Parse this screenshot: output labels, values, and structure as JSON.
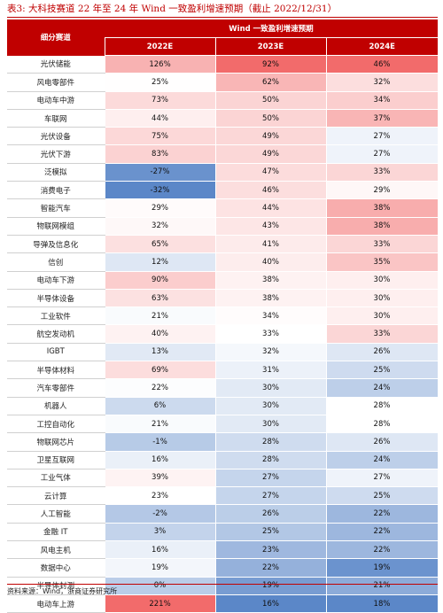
{
  "title": "表3:   大科技赛道 22 年至 24 年 Wind 一致盈利增速预期（截止 2022/12/31）",
  "header": {
    "category": "细分赛道",
    "group": "Wind 一致盈利增速预期",
    "years": [
      "2022E",
      "2023E",
      "2024E"
    ]
  },
  "rows": [
    {
      "name": "光伏储能",
      "v": [
        "126%",
        "92%",
        "46%"
      ]
    },
    {
      "name": "风电零部件",
      "v": [
        "25%",
        "62%",
        "32%"
      ]
    },
    {
      "name": "电动车中游",
      "v": [
        "73%",
        "50%",
        "34%"
      ]
    },
    {
      "name": "车联网",
      "v": [
        "44%",
        "50%",
        "37%"
      ]
    },
    {
      "name": "光伏设备",
      "v": [
        "75%",
        "49%",
        "27%"
      ]
    },
    {
      "name": "光伏下游",
      "v": [
        "83%",
        "49%",
        "27%"
      ]
    },
    {
      "name": "泛模拟",
      "v": [
        "-27%",
        "47%",
        "33%"
      ]
    },
    {
      "name": "消费电子",
      "v": [
        "-32%",
        "46%",
        "29%"
      ]
    },
    {
      "name": "智能汽车",
      "v": [
        "29%",
        "44%",
        "38%"
      ]
    },
    {
      "name": "物联网模组",
      "v": [
        "32%",
        "43%",
        "38%"
      ]
    },
    {
      "name": "导弹及信息化",
      "v": [
        "65%",
        "41%",
        "33%"
      ]
    },
    {
      "name": "信创",
      "v": [
        "12%",
        "40%",
        "35%"
      ]
    },
    {
      "name": "电动车下游",
      "v": [
        "90%",
        "38%",
        "30%"
      ]
    },
    {
      "name": "半导体设备",
      "v": [
        "63%",
        "38%",
        "30%"
      ]
    },
    {
      "name": "工业软件",
      "v": [
        "21%",
        "34%",
        "30%"
      ]
    },
    {
      "name": "航空发动机",
      "v": [
        "40%",
        "33%",
        "33%"
      ]
    },
    {
      "name": "IGBT",
      "v": [
        "13%",
        "32%",
        "26%"
      ]
    },
    {
      "name": "半导体材料",
      "v": [
        "69%",
        "31%",
        "25%"
      ]
    },
    {
      "name": "汽车零部件",
      "v": [
        "22%",
        "30%",
        "24%"
      ]
    },
    {
      "name": "机器人",
      "v": [
        "6%",
        "30%",
        "28%"
      ]
    },
    {
      "name": "工控自动化",
      "v": [
        "21%",
        "30%",
        "28%"
      ]
    },
    {
      "name": "物联网芯片",
      "v": [
        "-1%",
        "28%",
        "26%"
      ]
    },
    {
      "name": "卫星互联网",
      "v": [
        "16%",
        "28%",
        "24%"
      ]
    },
    {
      "name": "工业气体",
      "v": [
        "39%",
        "27%",
        "27%"
      ]
    },
    {
      "name": "云计算",
      "v": [
        "23%",
        "27%",
        "25%"
      ]
    },
    {
      "name": "人工智能",
      "v": [
        "-2%",
        "26%",
        "22%"
      ]
    },
    {
      "name": "金融 IT",
      "v": [
        "3%",
        "25%",
        "22%"
      ]
    },
    {
      "name": "风电主机",
      "v": [
        "16%",
        "23%",
        "22%"
      ]
    },
    {
      "name": "数据中心",
      "v": [
        "19%",
        "22%",
        "19%"
      ]
    },
    {
      "name": "半导体封测",
      "v": [
        "0%",
        "19%",
        "21%"
      ]
    },
    {
      "name": "电动车上游",
      "v": [
        "221%",
        "16%",
        "18%"
      ]
    }
  ],
  "colors": {
    "header_bg": "#c00000",
    "header_text": "#ffffff",
    "title_text": "#c00000",
    "scale_low": "#5b87c8",
    "scale_mid": "#ffffff",
    "scale_high": "#f26b6b"
  },
  "source": "资料来源：Wind，浙商证券研究所"
}
